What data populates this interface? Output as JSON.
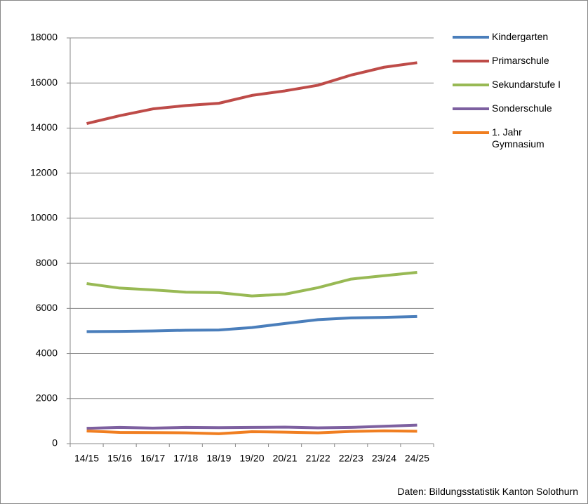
{
  "chart_data": {
    "type": "line",
    "categories": [
      "14/15",
      "15/16",
      "16/17",
      "17/18",
      "18/19",
      "19/20",
      "20/21",
      "21/22",
      "22/23",
      "23/24",
      "24/25"
    ],
    "series": [
      {
        "name": "Kindergarten",
        "color": "#4a7ebb",
        "values": [
          4970,
          4980,
          5000,
          5030,
          5040,
          5150,
          5330,
          5500,
          5580,
          5600,
          5640
        ]
      },
      {
        "name": "Primarschule",
        "color": "#be4b48",
        "values": [
          14200,
          14550,
          14850,
          15000,
          15100,
          15450,
          15650,
          15900,
          16350,
          16700,
          16900
        ]
      },
      {
        "name": "Sekundarstufe I",
        "color": "#98b954",
        "values": [
          7100,
          6900,
          6820,
          6720,
          6700,
          6550,
          6630,
          6920,
          7300,
          7450,
          7600
        ]
      },
      {
        "name": "Sonderschule",
        "color": "#7d60a0",
        "values": [
          680,
          720,
          690,
          720,
          710,
          720,
          730,
          700,
          720,
          770,
          820
        ]
      },
      {
        "name": "1. Jahr Gymnasium",
        "color": "#f07e20",
        "values": [
          560,
          500,
          490,
          480,
          440,
          530,
          510,
          480,
          540,
          570,
          550
        ]
      }
    ],
    "ylim": [
      0,
      18000
    ],
    "yticks": [
      0,
      2000,
      4000,
      6000,
      8000,
      10000,
      12000,
      14000,
      16000,
      18000
    ],
    "grid": true,
    "legend": "right",
    "source": "Daten: Bildungsstatistik Kanton Solothurn"
  }
}
